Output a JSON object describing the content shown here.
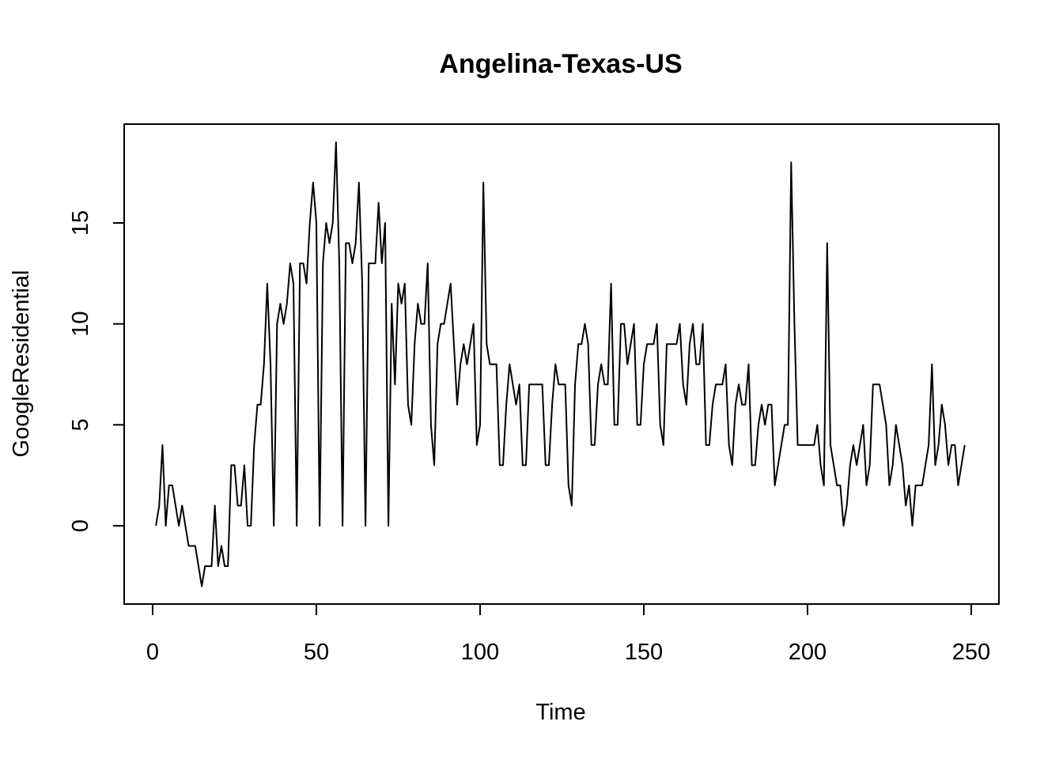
{
  "chart_data": {
    "type": "line",
    "title": "Angelina-Texas-US",
    "xlabel": "Time",
    "ylabel": "GoogleResidential",
    "xlim": [
      1,
      248
    ],
    "ylim": [
      -3,
      19
    ],
    "x_ticks": [
      0,
      50,
      100,
      150,
      200,
      250
    ],
    "y_ticks": [
      0,
      5,
      10,
      15
    ],
    "grid": false,
    "series": [
      {
        "x_start": 1,
        "values": [
          0,
          1,
          4,
          0,
          2,
          2,
          1,
          0,
          1,
          0,
          -1,
          -1,
          -1,
          -2,
          -3,
          -2,
          -2,
          -2,
          1,
          -2,
          -1,
          -2,
          -2,
          3,
          3,
          1,
          1,
          3,
          0,
          0,
          4,
          6,
          6,
          8,
          12,
          8,
          0,
          10,
          11,
          10,
          11,
          13,
          12,
          0,
          13,
          13,
          12,
          15,
          17,
          15,
          0,
          13,
          15,
          14,
          15,
          19,
          13,
          0,
          14,
          14,
          13,
          14,
          17,
          12,
          0,
          13,
          13,
          13,
          16,
          13,
          15,
          0,
          11,
          7,
          12,
          11,
          12,
          6,
          5,
          9,
          11,
          10,
          10,
          13,
          5,
          3,
          9,
          10,
          10,
          11,
          12,
          9,
          6,
          8,
          9,
          8,
          9,
          10,
          4,
          5,
          17,
          9,
          8,
          8,
          8,
          3,
          3,
          6,
          8,
          7,
          6,
          7,
          3,
          3,
          7,
          7,
          7,
          7,
          7,
          3,
          3,
          6,
          8,
          7,
          7,
          7,
          2,
          1,
          7,
          9,
          9,
          10,
          9,
          4,
          4,
          7,
          8,
          7,
          7,
          12,
          5,
          5,
          10,
          10,
          8,
          9,
          10,
          5,
          5,
          8,
          9,
          9,
          9,
          10,
          5,
          4,
          9,
          9,
          9,
          9,
          10,
          7,
          6,
          9,
          10,
          8,
          8,
          10,
          4,
          4,
          6,
          7,
          7,
          7,
          8,
          4,
          3,
          6,
          7,
          6,
          6,
          8,
          3,
          3,
          5,
          6,
          5,
          6,
          6,
          2,
          3,
          4,
          5,
          5,
          18,
          10,
          4,
          4,
          4,
          4,
          4,
          4,
          5,
          3,
          2,
          14,
          4,
          3,
          2,
          2,
          0,
          1,
          3,
          4,
          3,
          4,
          5,
          2,
          3,
          7,
          7,
          7,
          6,
          5,
          2,
          3,
          5,
          4,
          3,
          1,
          2,
          0,
          2,
          2,
          2,
          3,
          4,
          8,
          3,
          4,
          6,
          5,
          3,
          4,
          4,
          2,
          3,
          4
        ]
      }
    ]
  }
}
